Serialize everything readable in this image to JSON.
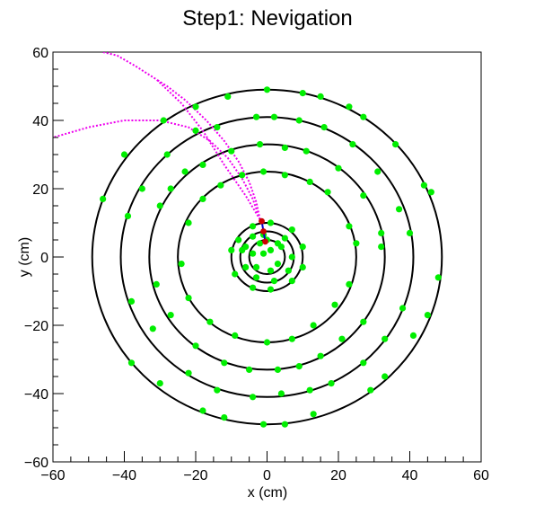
{
  "chart_data": {
    "type": "scatter",
    "title": "Step1: Nevigation",
    "xlabel": "x (cm)",
    "ylabel": "y (cm)",
    "xlim": [
      -60,
      60
    ],
    "ylim": [
      -60,
      60
    ],
    "xticks": [
      "−60",
      "−40",
      "−20",
      "0",
      "20",
      "40",
      "60"
    ],
    "yticks": [
      "−60",
      "−40",
      "−20",
      "0",
      "20",
      "40",
      "60"
    ],
    "grid": false,
    "legend": "none",
    "colors": {
      "rings": "#000000",
      "hits": "#00ee00",
      "tracks": "#ee00ee",
      "vertex_marker": "#cc0000",
      "vertex_line": "#0000cc"
    },
    "series": [
      {
        "kind": "circle",
        "center": [
          0,
          0
        ],
        "radii": [
          5,
          7.5,
          10,
          25,
          33,
          41,
          49
        ]
      },
      {
        "kind": "points",
        "points": [
          [
            -1,
            1
          ],
          [
            1,
            2
          ],
          [
            3,
            4
          ],
          [
            -2,
            4
          ],
          [
            0,
            5
          ],
          [
            4,
            3
          ],
          [
            -3,
            -3
          ],
          [
            1,
            -4
          ],
          [
            3,
            -2
          ],
          [
            -4,
            1
          ],
          [
            -6,
            3
          ],
          [
            -1,
            6.5
          ],
          [
            5,
            5.5
          ],
          [
            7,
            0
          ],
          [
            6,
            -4
          ],
          [
            2,
            -7
          ],
          [
            -3,
            -6
          ],
          [
            -6,
            -3
          ],
          [
            -7,
            2
          ],
          [
            -4,
            6
          ],
          [
            -8,
            5
          ],
          [
            -4,
            9
          ],
          [
            1,
            10
          ],
          [
            7,
            8
          ],
          [
            10,
            3
          ],
          [
            10,
            -3
          ],
          [
            7,
            -7
          ],
          [
            1,
            -9.5
          ],
          [
            -4,
            -9
          ],
          [
            -9,
            -5
          ],
          [
            -10,
            2
          ],
          [
            -22,
            10
          ],
          [
            -18,
            17
          ],
          [
            -13,
            21
          ],
          [
            -7,
            24
          ],
          [
            -1,
            25
          ],
          [
            5,
            24
          ],
          [
            12,
            22
          ],
          [
            17,
            19
          ],
          [
            23,
            9
          ],
          [
            25,
            4
          ],
          [
            23,
            -8
          ],
          [
            19,
            -14
          ],
          [
            13,
            -20
          ],
          [
            7,
            -24
          ],
          [
            0,
            -25
          ],
          [
            -9,
            -23
          ],
          [
            -16,
            -19
          ],
          [
            -22,
            -12
          ],
          [
            -24,
            -2
          ],
          [
            -30,
            15
          ],
          [
            -27,
            20
          ],
          [
            -23,
            25
          ],
          [
            -18,
            27
          ],
          [
            -10,
            31
          ],
          [
            -2,
            33
          ],
          [
            5,
            32
          ],
          [
            11,
            31
          ],
          [
            20,
            26
          ],
          [
            27,
            18
          ],
          [
            32,
            7
          ],
          [
            32,
            3
          ],
          [
            27,
            -19
          ],
          [
            21,
            -24
          ],
          [
            15,
            -29
          ],
          [
            9,
            -32
          ],
          [
            3,
            -33
          ],
          [
            -5,
            -33
          ],
          [
            -12,
            -31
          ],
          [
            -20,
            -26
          ],
          [
            -27,
            -17
          ],
          [
            -31,
            -8
          ],
          [
            -39,
            12
          ],
          [
            -35,
            20
          ],
          [
            -28,
            30
          ],
          [
            -20,
            37
          ],
          [
            -14,
            38
          ],
          [
            -3,
            41
          ],
          [
            2,
            41
          ],
          [
            9,
            40
          ],
          [
            16,
            38
          ],
          [
            24,
            33
          ],
          [
            31,
            25
          ],
          [
            37,
            14
          ],
          [
            40,
            7
          ],
          [
            38,
            -15
          ],
          [
            33,
            -24
          ],
          [
            27,
            -31
          ],
          [
            18,
            -37
          ],
          [
            12,
            -39
          ],
          [
            4,
            -40
          ],
          [
            -4,
            -41
          ],
          [
            -14,
            -39
          ],
          [
            -22,
            -34
          ],
          [
            -32,
            -21
          ],
          [
            -38,
            -13
          ],
          [
            -46,
            17
          ],
          [
            -40,
            30
          ],
          [
            -29,
            40
          ],
          [
            -20,
            44
          ],
          [
            -11,
            47
          ],
          [
            0,
            49
          ],
          [
            10,
            48
          ],
          [
            15,
            47
          ],
          [
            23,
            44
          ],
          [
            27,
            41
          ],
          [
            36,
            33
          ],
          [
            44,
            21
          ],
          [
            46,
            19
          ],
          [
            48,
            -6
          ],
          [
            45,
            -17
          ],
          [
            41,
            -23
          ],
          [
            33,
            -35
          ],
          [
            29,
            -39
          ],
          [
            13,
            -46
          ],
          [
            5,
            -49
          ],
          [
            -1,
            -49
          ],
          [
            -12,
            -47
          ],
          [
            -18,
            -45
          ],
          [
            -30,
            -37
          ],
          [
            -38,
            -31
          ]
        ]
      },
      {
        "kind": "tracks",
        "tracks": [
          [
            [
              -2,
              11
            ],
            [
              -3,
              16
            ],
            [
              -5,
              22
            ],
            [
              -8,
              28
            ],
            [
              -12,
              34
            ],
            [
              -17,
              40
            ],
            [
              -23,
              46
            ],
            [
              -28,
              50
            ],
            [
              -31,
              52
            ]
          ],
          [
            [
              -2,
              11
            ],
            [
              -4,
              17
            ],
            [
              -7,
              23
            ],
            [
              -11,
              29
            ],
            [
              -16,
              34
            ],
            [
              -22,
              38
            ],
            [
              -30,
              40
            ],
            [
              -40,
              40
            ],
            [
              -50,
              38
            ],
            [
              -60,
              35
            ]
          ],
          [
            [
              -2,
              11
            ],
            [
              -6,
              18
            ],
            [
              -12,
              27
            ],
            [
              -18,
              37
            ],
            [
              -24,
              45
            ],
            [
              -31,
              52
            ],
            [
              -37,
              56
            ],
            [
              -42,
              59
            ],
            [
              -46,
              60
            ]
          ]
        ]
      },
      {
        "kind": "vertex",
        "points": [
          [
            -1.5,
            10.5
          ],
          [
            -1,
            7.5
          ],
          [
            -0.5,
            4.5
          ]
        ]
      }
    ]
  }
}
